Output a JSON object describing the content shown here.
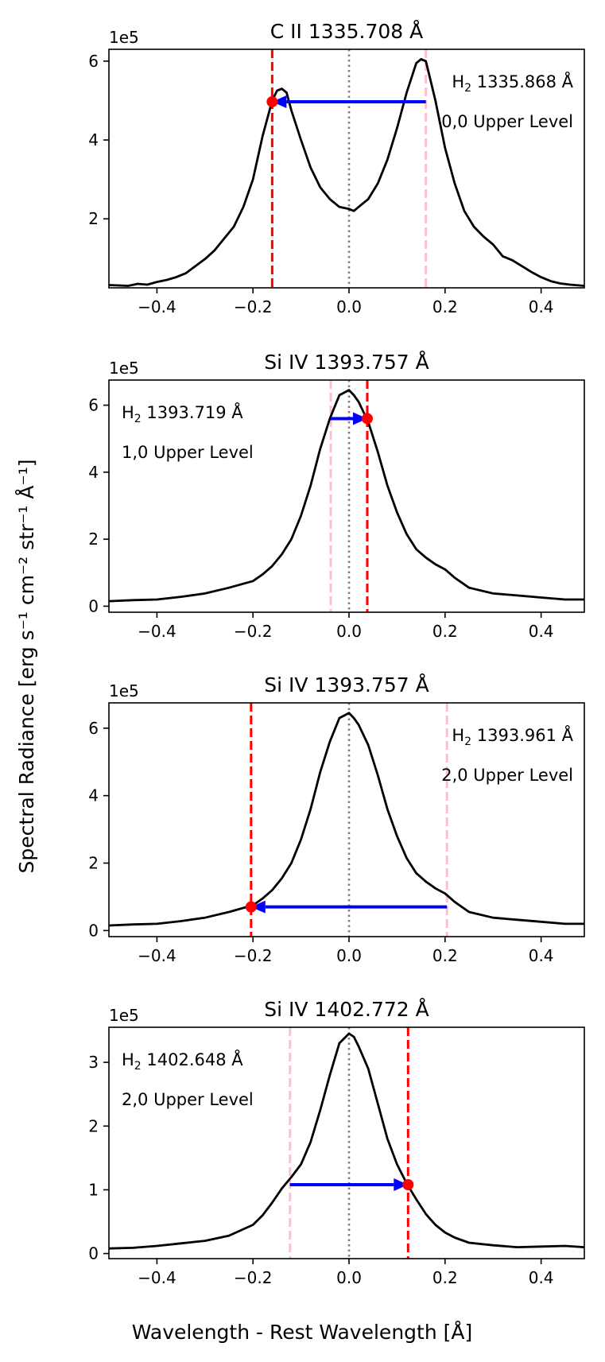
{
  "figure": {
    "ylabel": "Spectral Radiance [erg s⁻¹ cm⁻² str⁻¹ Å⁻¹]",
    "xlabel": "Wavelength - Rest Wavelength [Å]"
  },
  "colors": {
    "profile": "#000000",
    "rest_line": "#808080",
    "ion_line": "#ff0000",
    "h2_line": "#ffc0cb",
    "arrow": "#0000ff",
    "marker": "#ff0000"
  },
  "chart_data": [
    {
      "type": "line",
      "title": "C II 1335.708 Å",
      "multiplier": "1e5",
      "xlim": [
        -0.5,
        0.49
      ],
      "ylim": [
        0.25,
        6.3
      ],
      "xticks": [
        -0.4,
        -0.2,
        0.0,
        0.2,
        0.4
      ],
      "xtick_labels": [
        "−0.4",
        "−0.2",
        "0.0",
        "0.2",
        "0.4"
      ],
      "yticks": [
        2,
        4,
        6
      ],
      "ytick_labels": [
        "2",
        "4",
        "6"
      ],
      "annotation_line1_prefix": "H",
      "annotation_line1_sub": "2",
      "annotation_line1_suffix": " 1335.868 Å",
      "annotation_line2": "0,0 Upper Level",
      "annotation_side": "right",
      "ion_line_x": -0.16,
      "h2_line_x": 0.16,
      "arrow_y": 4.97,
      "x": [
        -0.5,
        -0.46,
        -0.44,
        -0.42,
        -0.4,
        -0.38,
        -0.36,
        -0.34,
        -0.32,
        -0.3,
        -0.28,
        -0.26,
        -0.24,
        -0.22,
        -0.2,
        -0.18,
        -0.16,
        -0.15,
        -0.14,
        -0.13,
        -0.12,
        -0.1,
        -0.08,
        -0.06,
        -0.04,
        -0.02,
        0.0,
        0.01,
        0.02,
        0.04,
        0.06,
        0.08,
        0.1,
        0.12,
        0.14,
        0.15,
        0.16,
        0.18,
        0.2,
        0.22,
        0.24,
        0.26,
        0.28,
        0.3,
        0.32,
        0.34,
        0.36,
        0.38,
        0.4,
        0.42,
        0.44,
        0.46,
        0.49
      ],
      "y": [
        0.32,
        0.3,
        0.35,
        0.33,
        0.4,
        0.45,
        0.52,
        0.62,
        0.8,
        0.98,
        1.2,
        1.5,
        1.8,
        2.3,
        3.0,
        4.1,
        5.0,
        5.25,
        5.3,
        5.2,
        4.75,
        4.0,
        3.3,
        2.8,
        2.5,
        2.3,
        2.25,
        2.2,
        2.3,
        2.5,
        2.9,
        3.5,
        4.3,
        5.2,
        5.95,
        6.05,
        6.0,
        5.0,
        3.8,
        2.9,
        2.2,
        1.8,
        1.55,
        1.35,
        1.05,
        0.95,
        0.8,
        0.65,
        0.52,
        0.42,
        0.36,
        0.33,
        0.3
      ]
    },
    {
      "type": "line",
      "title": "Si IV 1393.757 Å",
      "multiplier": "1e5",
      "xlim": [
        -0.5,
        0.49
      ],
      "ylim": [
        -0.18,
        6.75
      ],
      "xticks": [
        -0.4,
        -0.2,
        0.0,
        0.2,
        0.4
      ],
      "xtick_labels": [
        "−0.4",
        "−0.2",
        "0.0",
        "0.2",
        "0.4"
      ],
      "yticks": [
        0,
        2,
        4,
        6
      ],
      "ytick_labels": [
        "0",
        "2",
        "4",
        "6"
      ],
      "annotation_line1_prefix": "H",
      "annotation_line1_sub": "2",
      "annotation_line1_suffix": " 1393.719 Å",
      "annotation_line2": "1,0 Upper Level",
      "annotation_side": "left",
      "ion_line_x": 0.038,
      "h2_line_x": -0.038,
      "arrow_y": 5.6,
      "x": [
        -0.5,
        -0.45,
        -0.4,
        -0.35,
        -0.3,
        -0.25,
        -0.2,
        -0.18,
        -0.16,
        -0.14,
        -0.12,
        -0.1,
        -0.08,
        -0.06,
        -0.04,
        -0.02,
        0.0,
        0.01,
        0.02,
        0.04,
        0.06,
        0.08,
        0.1,
        0.12,
        0.14,
        0.16,
        0.18,
        0.2,
        0.22,
        0.25,
        0.3,
        0.35,
        0.4,
        0.45,
        0.49
      ],
      "y": [
        0.15,
        0.18,
        0.2,
        0.28,
        0.38,
        0.55,
        0.75,
        0.95,
        1.2,
        1.55,
        2.0,
        2.7,
        3.6,
        4.7,
        5.6,
        6.3,
        6.45,
        6.3,
        6.1,
        5.5,
        4.6,
        3.6,
        2.8,
        2.15,
        1.7,
        1.45,
        1.25,
        1.1,
        0.85,
        0.55,
        0.38,
        0.32,
        0.26,
        0.2,
        0.2
      ]
    },
    {
      "type": "line",
      "title": "Si IV 1393.757 Å",
      "multiplier": "1e5",
      "xlim": [
        -0.5,
        0.49
      ],
      "ylim": [
        -0.18,
        6.75
      ],
      "xticks": [
        -0.4,
        -0.2,
        0.0,
        0.2,
        0.4
      ],
      "xtick_labels": [
        "−0.4",
        "−0.2",
        "0.0",
        "0.2",
        "0.4"
      ],
      "yticks": [
        0,
        2,
        4,
        6
      ],
      "ytick_labels": [
        "0",
        "2",
        "4",
        "6"
      ],
      "annotation_line1_prefix": "H",
      "annotation_line1_sub": "2",
      "annotation_line1_suffix": " 1393.961 Å",
      "annotation_line2": "2,0 Upper Level",
      "annotation_side": "right",
      "ion_line_x": -0.204,
      "h2_line_x": 0.204,
      "arrow_y": 0.7,
      "x": [
        -0.5,
        -0.45,
        -0.4,
        -0.35,
        -0.3,
        -0.25,
        -0.2,
        -0.18,
        -0.16,
        -0.14,
        -0.12,
        -0.1,
        -0.08,
        -0.06,
        -0.04,
        -0.02,
        0.0,
        0.01,
        0.02,
        0.04,
        0.06,
        0.08,
        0.1,
        0.12,
        0.14,
        0.16,
        0.18,
        0.2,
        0.22,
        0.25,
        0.3,
        0.35,
        0.4,
        0.45,
        0.49
      ],
      "y": [
        0.15,
        0.18,
        0.2,
        0.28,
        0.38,
        0.55,
        0.75,
        0.95,
        1.2,
        1.55,
        2.0,
        2.7,
        3.6,
        4.7,
        5.6,
        6.3,
        6.45,
        6.3,
        6.1,
        5.5,
        4.6,
        3.6,
        2.8,
        2.15,
        1.7,
        1.45,
        1.25,
        1.1,
        0.85,
        0.55,
        0.38,
        0.32,
        0.26,
        0.2,
        0.2
      ]
    },
    {
      "type": "line",
      "title": "Si IV 1402.772 Å",
      "multiplier": "1e5",
      "xlim": [
        -0.5,
        0.49
      ],
      "ylim": [
        -0.08,
        3.55
      ],
      "xticks": [
        -0.4,
        -0.2,
        0.0,
        0.2,
        0.4
      ],
      "xtick_labels": [
        "−0.4",
        "−0.2",
        "0.0",
        "0.2",
        "0.4"
      ],
      "yticks": [
        0,
        1,
        2,
        3
      ],
      "ytick_labels": [
        "0",
        "1",
        "2",
        "3"
      ],
      "annotation_line1_prefix": "H",
      "annotation_line1_sub": "2",
      "annotation_line1_suffix": " 1402.648 Å",
      "annotation_line2": "2,0 Upper Level",
      "annotation_side": "left",
      "ion_line_x": 0.123,
      "h2_line_x": -0.123,
      "arrow_y": 1.08,
      "x": [
        -0.5,
        -0.45,
        -0.4,
        -0.35,
        -0.3,
        -0.25,
        -0.2,
        -0.18,
        -0.16,
        -0.14,
        -0.12,
        -0.1,
        -0.08,
        -0.06,
        -0.04,
        -0.02,
        0.0,
        0.01,
        0.02,
        0.04,
        0.06,
        0.08,
        0.1,
        0.12,
        0.14,
        0.16,
        0.18,
        0.2,
        0.22,
        0.25,
        0.3,
        0.35,
        0.4,
        0.45,
        0.49
      ],
      "y": [
        0.08,
        0.09,
        0.12,
        0.16,
        0.2,
        0.28,
        0.45,
        0.6,
        0.8,
        1.02,
        1.2,
        1.4,
        1.75,
        2.25,
        2.8,
        3.3,
        3.45,
        3.4,
        3.25,
        2.9,
        2.35,
        1.8,
        1.4,
        1.1,
        0.85,
        0.62,
        0.45,
        0.33,
        0.25,
        0.17,
        0.13,
        0.1,
        0.11,
        0.12,
        0.1
      ]
    }
  ]
}
